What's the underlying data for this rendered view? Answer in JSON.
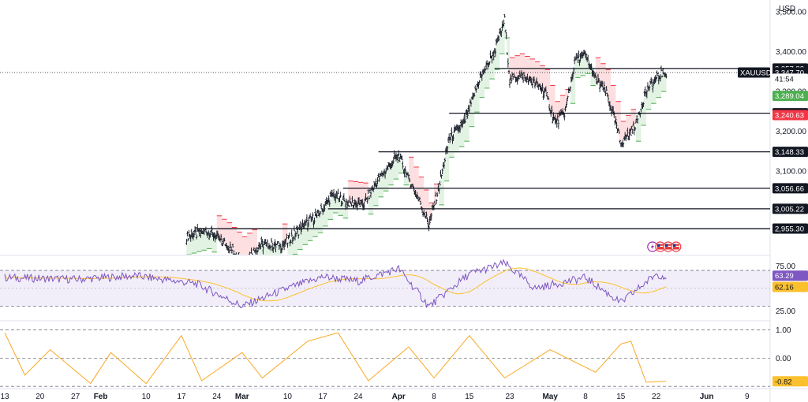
{
  "chart_data": [
    {
      "type": "candlestick",
      "symbol": "XAUUSD",
      "currency": "USD",
      "ylim": [
        2890,
        3530
      ],
      "y_ticks": [
        "3,500.00",
        "3,400.00",
        "3,300.00",
        "3,200.00",
        "3,100.00"
      ],
      "price_tags": [
        {
          "text": "3,357.83",
          "value": 3357.83,
          "kind": "line"
        },
        {
          "text": "3,347.70",
          "value": 3347.7,
          "kind": "last"
        },
        {
          "text": "41:54",
          "value": 3332,
          "kind": "timer"
        },
        {
          "text": "3,289.04",
          "value": 3289.04,
          "kind": "green"
        },
        {
          "text": "3,245.40",
          "value": 3245.4,
          "kind": "line"
        },
        {
          "text": "3,240.63",
          "value": 3240.63,
          "kind": "red"
        },
        {
          "text": "3,148.33",
          "value": 3148.33,
          "kind": "line"
        },
        {
          "text": "3,056.66",
          "value": 3056.66,
          "kind": "line"
        },
        {
          "text": "3,005.22",
          "value": 3005.22,
          "kind": "line"
        },
        {
          "text": "2,955.30",
          "value": 2955.3,
          "kind": "line"
        }
      ],
      "horizontal_levels": [
        {
          "value": 3357.83,
          "start": "2025-04-20"
        },
        {
          "value": 3245.4,
          "start": "2025-04-11"
        },
        {
          "value": 3148.33,
          "start": "2025-03-28"
        },
        {
          "value": 3056.66,
          "start": "2025-03-21"
        },
        {
          "value": 3005.22,
          "start": "2025-03-18"
        },
        {
          "value": 2955.3,
          "start": "2025-02-20"
        }
      ],
      "candle_path": [
        [
          "2025-02-18",
          2935
        ],
        [
          "2025-02-22",
          2950
        ],
        [
          "2025-02-26",
          2915
        ],
        [
          "2025-03-01",
          2880
        ],
        [
          "2025-03-05",
          2915
        ],
        [
          "2025-03-09",
          2912
        ],
        [
          "2025-03-13",
          2960
        ],
        [
          "2025-03-16",
          2990
        ],
        [
          "2025-03-19",
          3040
        ],
        [
          "2025-03-22",
          3020
        ],
        [
          "2025-03-25",
          3015
        ],
        [
          "2025-03-28",
          3080
        ],
        [
          "2025-04-01",
          3140
        ],
        [
          "2025-04-03",
          3080
        ],
        [
          "2025-04-05",
          3030
        ],
        [
          "2025-04-07",
          2965
        ],
        [
          "2025-04-09",
          3060
        ],
        [
          "2025-04-11",
          3180
        ],
        [
          "2025-04-14",
          3220
        ],
        [
          "2025-04-17",
          3330
        ],
        [
          "2025-04-20",
          3400
        ],
        [
          "2025-04-22",
          3480
        ],
        [
          "2025-04-23",
          3330
        ],
        [
          "2025-04-25",
          3340
        ],
        [
          "2025-04-28",
          3320
        ],
        [
          "2025-04-30",
          3300
        ],
        [
          "2025-05-02",
          3220
        ],
        [
          "2025-05-04",
          3250
        ],
        [
          "2025-05-06",
          3380
        ],
        [
          "2025-05-08",
          3390
        ],
        [
          "2025-05-10",
          3330
        ],
        [
          "2025-05-12",
          3300
        ],
        [
          "2025-05-14",
          3220
        ],
        [
          "2025-05-15",
          3170
        ],
        [
          "2025-05-17",
          3200
        ],
        [
          "2025-05-18",
          3220
        ],
        [
          "2025-05-20",
          3300
        ],
        [
          "2025-05-22",
          3330
        ],
        [
          "2025-05-23",
          3345
        ],
        [
          "2025-05-24",
          3347.7
        ]
      ],
      "date_range": [
        "2025-01-13",
        "2025-06-12"
      ],
      "x_ticks": [
        {
          "label": "13",
          "date": "2025-01-13"
        },
        {
          "label": "20",
          "date": "2025-01-20"
        },
        {
          "label": "27",
          "date": "2025-01-27"
        },
        {
          "label": "Feb",
          "date": "2025-02-01"
        },
        {
          "label": "10",
          "date": "2025-02-10"
        },
        {
          "label": "17",
          "date": "2025-02-17"
        },
        {
          "label": "24",
          "date": "2025-02-24"
        },
        {
          "label": "Mar",
          "date": "2025-03-01"
        },
        {
          "label": "10",
          "date": "2025-03-10"
        },
        {
          "label": "17",
          "date": "2025-03-17"
        },
        {
          "label": "24",
          "date": "2025-03-24"
        },
        {
          "label": "Apr",
          "date": "2025-04-01"
        },
        {
          "label": "8",
          "date": "2025-04-08"
        },
        {
          "label": "15",
          "date": "2025-04-15"
        },
        {
          "label": "23",
          "date": "2025-04-23"
        },
        {
          "label": "May",
          "date": "2025-05-01"
        },
        {
          "label": "8",
          "date": "2025-05-08"
        },
        {
          "label": "15",
          "date": "2025-05-15"
        },
        {
          "label": "22",
          "date": "2025-05-22"
        },
        {
          "label": "Jun",
          "date": "2025-06-01"
        },
        {
          "label": "9",
          "date": "2025-06-09"
        }
      ]
    },
    {
      "type": "line",
      "name": "rsi",
      "ylim": [
        20,
        85
      ],
      "y_ticks": [
        "75.00",
        "25.00"
      ],
      "band": [
        30,
        70
      ],
      "tags": [
        {
          "text": "63.29",
          "value": 63.29,
          "color": "#7e57c2"
        },
        {
          "text": "62.16",
          "value": 62.16,
          "color": "#fbc02d"
        }
      ],
      "path": [
        [
          "2025-01-13",
          62
        ],
        [
          "2025-01-27",
          60
        ],
        [
          "2025-02-08",
          64
        ],
        [
          "2025-02-20",
          55
        ],
        [
          "2025-03-01",
          30
        ],
        [
          "2025-03-10",
          50
        ],
        [
          "2025-03-17",
          63
        ],
        [
          "2025-03-24",
          58
        ],
        [
          "2025-04-01",
          72
        ],
        [
          "2025-04-07",
          30
        ],
        [
          "2025-04-15",
          66
        ],
        [
          "2025-04-22",
          78
        ],
        [
          "2025-04-28",
          50
        ],
        [
          "2025-05-08",
          62
        ],
        [
          "2025-05-15",
          34
        ],
        [
          "2025-05-22",
          66
        ],
        [
          "2025-05-24",
          63.29
        ]
      ]
    },
    {
      "type": "line",
      "name": "oscillator",
      "ylim": [
        -1.05,
        1.1
      ],
      "y_ticks": [
        "1.00",
        "0.00"
      ],
      "band": [
        -1,
        1
      ],
      "tags": [
        {
          "text": "-0.82",
          "value": -0.82,
          "color": "#fbc02d"
        }
      ],
      "path": [
        [
          "2025-01-13",
          0.9
        ],
        [
          "2025-01-17",
          -0.6
        ],
        [
          "2025-01-22",
          0.3
        ],
        [
          "2025-01-30",
          -0.9
        ],
        [
          "2025-02-03",
          0.2
        ],
        [
          "2025-02-10",
          -0.9
        ],
        [
          "2025-02-17",
          0.8
        ],
        [
          "2025-02-21",
          -0.8
        ],
        [
          "2025-03-01",
          0.2
        ],
        [
          "2025-03-05",
          -0.7
        ],
        [
          "2025-03-14",
          0.6
        ],
        [
          "2025-03-20",
          0.9
        ],
        [
          "2025-03-26",
          -0.8
        ],
        [
          "2025-04-03",
          0.4
        ],
        [
          "2025-04-08",
          -0.7
        ],
        [
          "2025-04-15",
          0.8
        ],
        [
          "2025-04-22",
          -0.7
        ],
        [
          "2025-05-01",
          0.3
        ],
        [
          "2025-05-10",
          -0.5
        ],
        [
          "2025-05-15",
          0.5
        ],
        [
          "2025-05-17",
          0.6
        ],
        [
          "2025-05-20",
          -0.85
        ],
        [
          "2025-05-24",
          -0.82
        ]
      ]
    }
  ],
  "event_icons": [
    "lightning-icon",
    "us-flag-icon",
    "us-flag-icon",
    "us-flag-icon"
  ]
}
